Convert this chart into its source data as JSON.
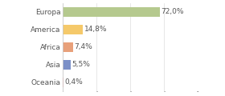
{
  "categories": [
    "Europa",
    "America",
    "Africa",
    "Asia",
    "Oceania"
  ],
  "values": [
    72.0,
    14.8,
    7.4,
    5.5,
    0.4
  ],
  "labels": [
    "72,0%",
    "14,8%",
    "7,4%",
    "5,5%",
    "0,4%"
  ],
  "bar_colors": [
    "#b5c98e",
    "#f5c96a",
    "#e8a07a",
    "#7b90c8",
    "#e87a7a"
  ],
  "background_color": "#ffffff",
  "label_fontsize": 6.5,
  "tick_fontsize": 6.5,
  "grid_color": "#dddddd",
  "text_color": "#555555",
  "xlim": [
    0,
    100
  ],
  "bar_height": 0.55
}
